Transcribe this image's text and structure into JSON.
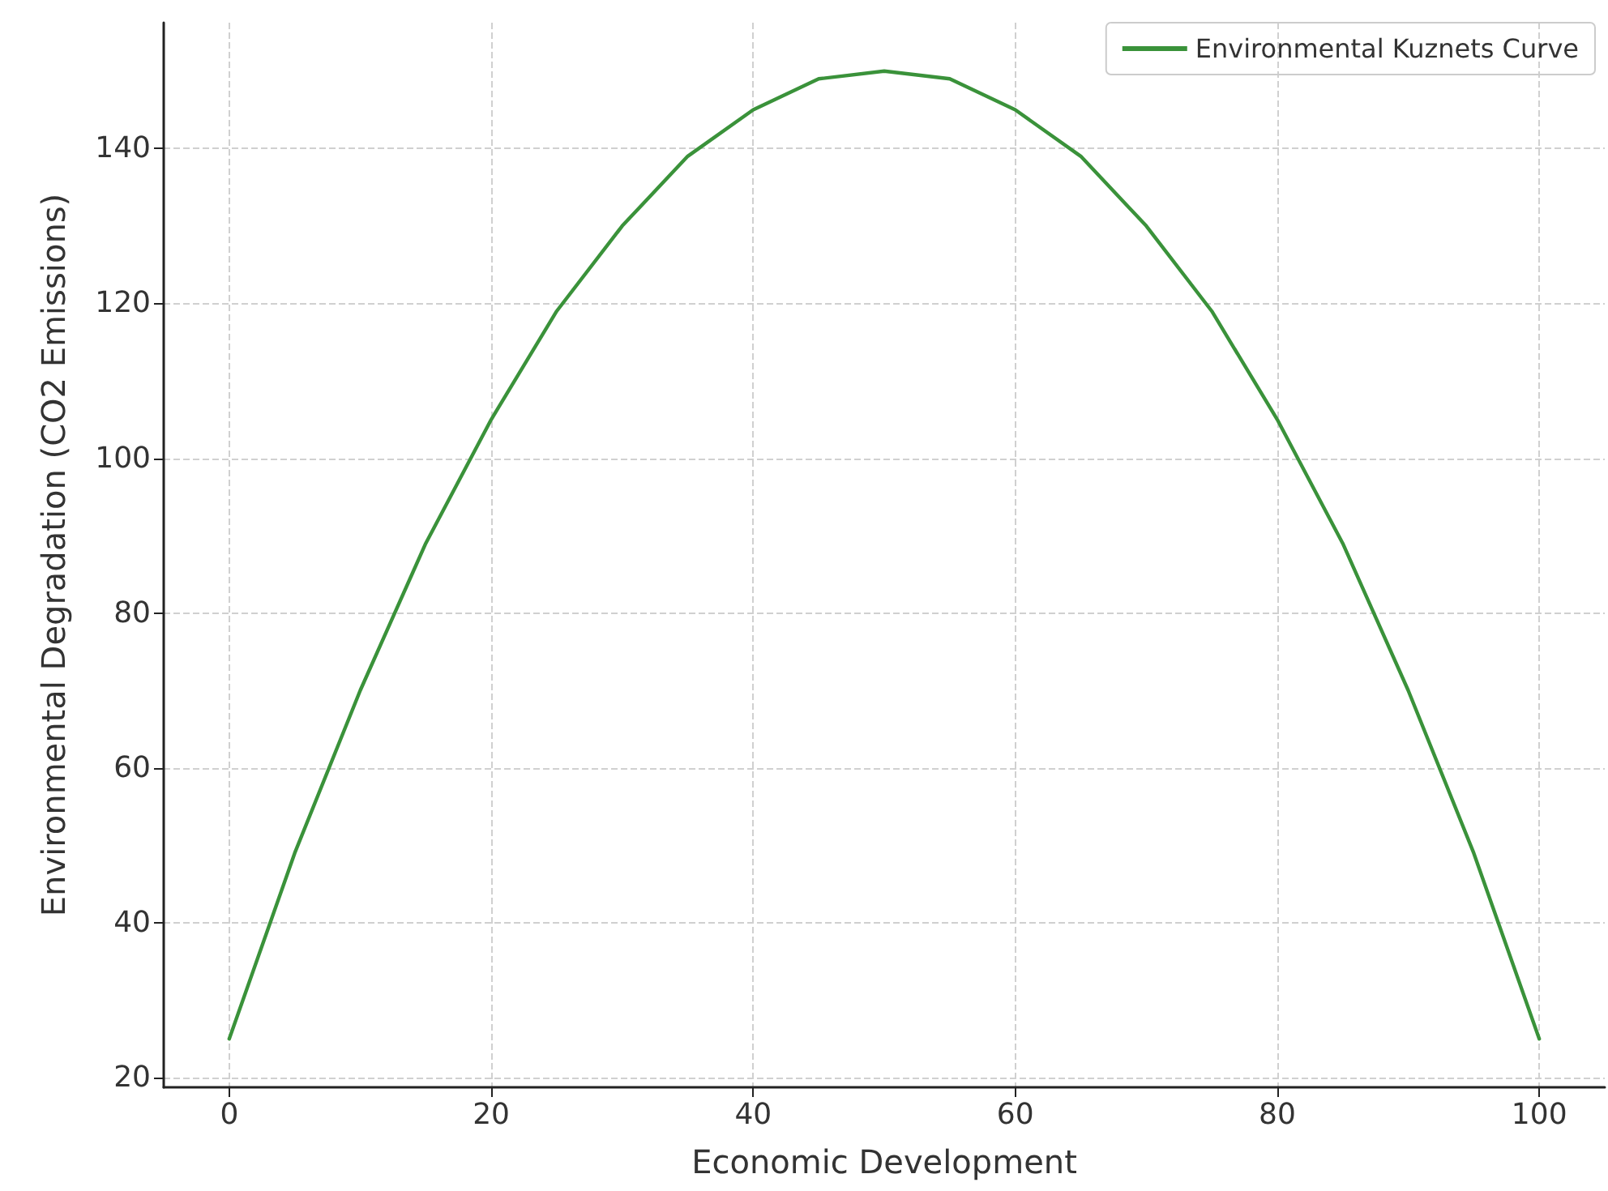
{
  "chart_data": {
    "type": "line",
    "xlabel": "Economic Development",
    "ylabel": "Environmental Degradation (CO2 Emissions)",
    "x": [
      0,
      5,
      10,
      15,
      20,
      25,
      30,
      35,
      40,
      45,
      50,
      55,
      60,
      65,
      70,
      75,
      80,
      85,
      90,
      95,
      100
    ],
    "series": [
      {
        "name": "Environmental Kuznets Curve",
        "color": "#3a923a",
        "values": [
          25,
          49,
          70,
          89,
          105,
          119,
          130,
          139,
          145,
          149,
          150,
          149,
          145,
          139,
          130,
          119,
          105,
          89,
          70,
          49,
          25
        ]
      }
    ],
    "xlim": [
      -5,
      105
    ],
    "ylim": [
      18.75,
      156.25
    ],
    "xticks": [
      0,
      20,
      40,
      60,
      80,
      100
    ],
    "yticks": [
      20,
      40,
      60,
      80,
      100,
      120,
      140
    ],
    "grid": true,
    "legend": "top right",
    "marker": "none",
    "line_style": "solid"
  }
}
